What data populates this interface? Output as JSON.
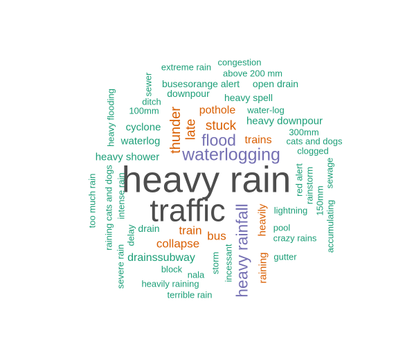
{
  "colors": {
    "dark": "#4d4d4d",
    "purple": "#7570b3",
    "orange": "#d95f02",
    "teal": "#1b9e77"
  },
  "words": [
    {
      "text": "heavy rain",
      "color": "#4d4d4d"
    },
    {
      "text": "traffic",
      "color": "#4d4d4d"
    },
    {
      "text": "waterlogging",
      "color": "#7570b3"
    },
    {
      "text": "heavy rainfall",
      "color": "#7570b3"
    },
    {
      "text": "flood",
      "color": "#7570b3"
    },
    {
      "text": "thunder",
      "color": "#d95f02"
    },
    {
      "text": "stuck",
      "color": "#d95f02"
    },
    {
      "text": "late",
      "color": "#d95f02"
    },
    {
      "text": "pothole",
      "color": "#d95f02"
    },
    {
      "text": "trains",
      "color": "#d95f02"
    },
    {
      "text": "train",
      "color": "#d95f02"
    },
    {
      "text": "bus",
      "color": "#d95f02"
    },
    {
      "text": "collapse",
      "color": "#d95f02"
    },
    {
      "text": "raining",
      "color": "#d95f02"
    },
    {
      "text": "heavily",
      "color": "#d95f02"
    },
    {
      "text": "congestion",
      "color": "#1b9e77"
    },
    {
      "text": "extreme rain",
      "color": "#1b9e77"
    },
    {
      "text": "above 200 mm",
      "color": "#1b9e77"
    },
    {
      "text": "sewer",
      "color": "#1b9e77"
    },
    {
      "text": "busesorange alert",
      "color": "#1b9e77"
    },
    {
      "text": "open drain",
      "color": "#1b9e77"
    },
    {
      "text": "downpour",
      "color": "#1b9e77"
    },
    {
      "text": "heavy spell",
      "color": "#1b9e77"
    },
    {
      "text": "ditch",
      "color": "#1b9e77"
    },
    {
      "text": "heavy flooding",
      "color": "#1b9e77"
    },
    {
      "text": "100mm",
      "color": "#1b9e77"
    },
    {
      "text": "water-log",
      "color": "#1b9e77"
    },
    {
      "text": "heavy downpour",
      "color": "#1b9e77"
    },
    {
      "text": "cyclone",
      "color": "#1b9e77"
    },
    {
      "text": "300mm",
      "color": "#1b9e77"
    },
    {
      "text": "waterlog",
      "color": "#1b9e77"
    },
    {
      "text": "cats and dogs",
      "color": "#1b9e77"
    },
    {
      "text": "clogged",
      "color": "#1b9e77"
    },
    {
      "text": "heavy shower",
      "color": "#1b9e77"
    },
    {
      "text": "sewage",
      "color": "#1b9e77"
    },
    {
      "text": "red alert",
      "color": "#1b9e77"
    },
    {
      "text": "rainstorm",
      "color": "#1b9e77"
    },
    {
      "text": "accumulating",
      "color": "#1b9e77"
    },
    {
      "text": "150mm",
      "color": "#1b9e77"
    },
    {
      "text": "too much rain",
      "color": "#1b9e77"
    },
    {
      "text": "raining cats and dogs",
      "color": "#1b9e77"
    },
    {
      "text": "intense rain",
      "color": "#1b9e77"
    },
    {
      "text": "lightning",
      "color": "#1b9e77"
    },
    {
      "text": "drain",
      "color": "#1b9e77"
    },
    {
      "text": "delay",
      "color": "#1b9e77"
    },
    {
      "text": "pool",
      "color": "#1b9e77"
    },
    {
      "text": "crazy rains",
      "color": "#1b9e77"
    },
    {
      "text": "severe rain",
      "color": "#1b9e77"
    },
    {
      "text": "drainssubway",
      "color": "#1b9e77"
    },
    {
      "text": "gutter",
      "color": "#1b9e77"
    },
    {
      "text": "block",
      "color": "#1b9e77"
    },
    {
      "text": "storm",
      "color": "#1b9e77"
    },
    {
      "text": "incessant",
      "color": "#1b9e77"
    },
    {
      "text": "nala",
      "color": "#1b9e77"
    },
    {
      "text": "heavily raining",
      "color": "#1b9e77"
    },
    {
      "text": "terrible rain",
      "color": "#1b9e77"
    }
  ]
}
